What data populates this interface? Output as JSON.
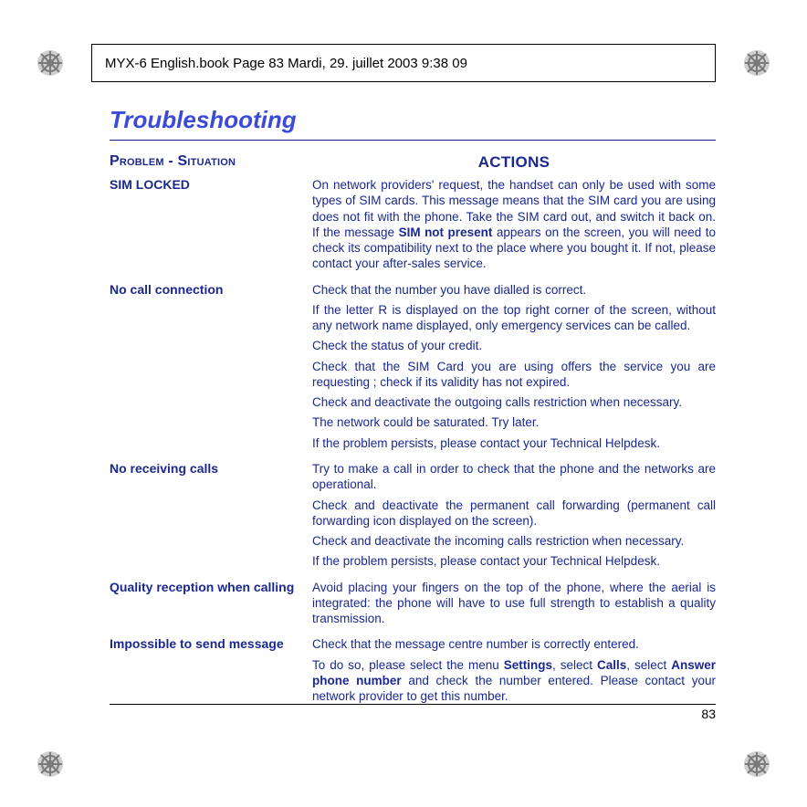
{
  "header": {
    "text": "MYX-6 English.book  Page 83  Mardi, 29. juillet 2003  9:38 09"
  },
  "title": "Troubleshooting",
  "columns": {
    "left": "Problem - Situation",
    "right": "ACTIONS"
  },
  "rows": [
    {
      "problem": "SIM LOCKED",
      "actions": [
        "On network providers' request, the handset can only be used with some types of SIM cards. This message means that the SIM card you are using does not fit with the phone. Take the SIM card out, and switch it back on. If the message <b>SIM not present</b> appears on the screen, you will need to check its compatibility next to the place where you bought it. If not, please contact your after-sales service."
      ]
    },
    {
      "problem": "No call connection",
      "actions": [
        "Check that the number you have dialled is correct.",
        "If the letter R is displayed on the top right corner of the screen, without any network name displayed, only emergency services can be called.",
        "Check the status of your credit.",
        "Check that the SIM Card you are using offers the service you are requesting ; check if its validity has not expired.",
        "Check and deactivate the outgoing calls restriction when necessary.",
        "The network could be saturated. Try later.",
        "If the problem persists, please contact your Technical Helpdesk."
      ]
    },
    {
      "problem": "No receiving calls",
      "actions": [
        "Try to make a call in order to check that the phone and the networks are operational.",
        "Check and deactivate the permanent call forwarding (permanent call forwarding icon displayed on the screen).",
        "Check and deactivate the incoming calls restriction when necessary.",
        "If the problem persists, please contact your Technical Helpdesk."
      ]
    },
    {
      "problem": "Quality reception when calling",
      "actions": [
        "Avoid placing your fingers on the top of the phone, where the aerial is integrated: the phone will have to use full strength to establish a quality transmission."
      ]
    },
    {
      "problem": "Impossible to send message",
      "actions": [
        "Check that the message centre number is correctly entered.",
        "To do so, please select the menu <b>Settings</b>, select <b>Calls</b>, select <b>Answer phone number</b> and check the number entered. Please contact your network provider to get this number."
      ]
    }
  ],
  "page_number": "83",
  "colors": {
    "blue": "#1a2890",
    "title_blue": "#3b4bd8"
  }
}
